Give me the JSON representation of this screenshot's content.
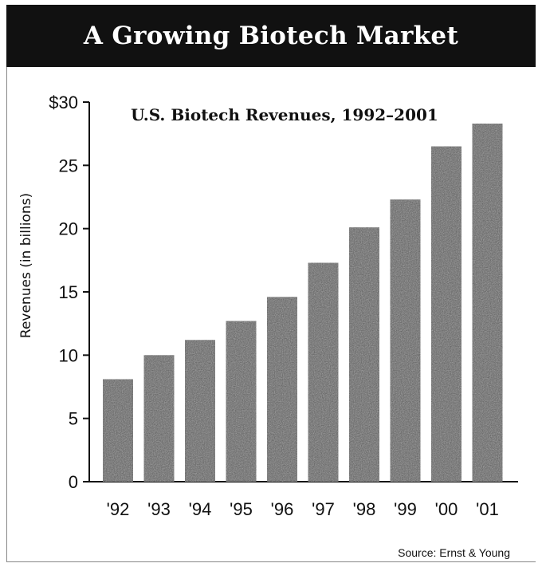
{
  "banner": {
    "title": "A Growing Biotech Market"
  },
  "source": "Source: Ernst & Young",
  "chart_data": {
    "type": "bar",
    "title": "U.S. Biotech Revenues, 1992–2001",
    "xlabel": "",
    "ylabel": "Revenues (in billions)",
    "categories": [
      "'92",
      "'93",
      "'94",
      "'95",
      "'96",
      "'97",
      "'98",
      "'99",
      "'00",
      "'01"
    ],
    "values": [
      8.1,
      10.0,
      11.2,
      12.7,
      14.6,
      17.3,
      20.1,
      22.3,
      26.5,
      28.3
    ],
    "ylim": [
      0,
      30
    ],
    "yticks": [
      0,
      5,
      10,
      15,
      20,
      25,
      30
    ],
    "ytick_labels": [
      "0",
      "5",
      "10",
      "15",
      "20",
      "25",
      "$30"
    ],
    "grid": false,
    "legend": "none",
    "colors": {
      "bar": "#555555",
      "axis": "#111111",
      "banner": "#111111"
    }
  }
}
